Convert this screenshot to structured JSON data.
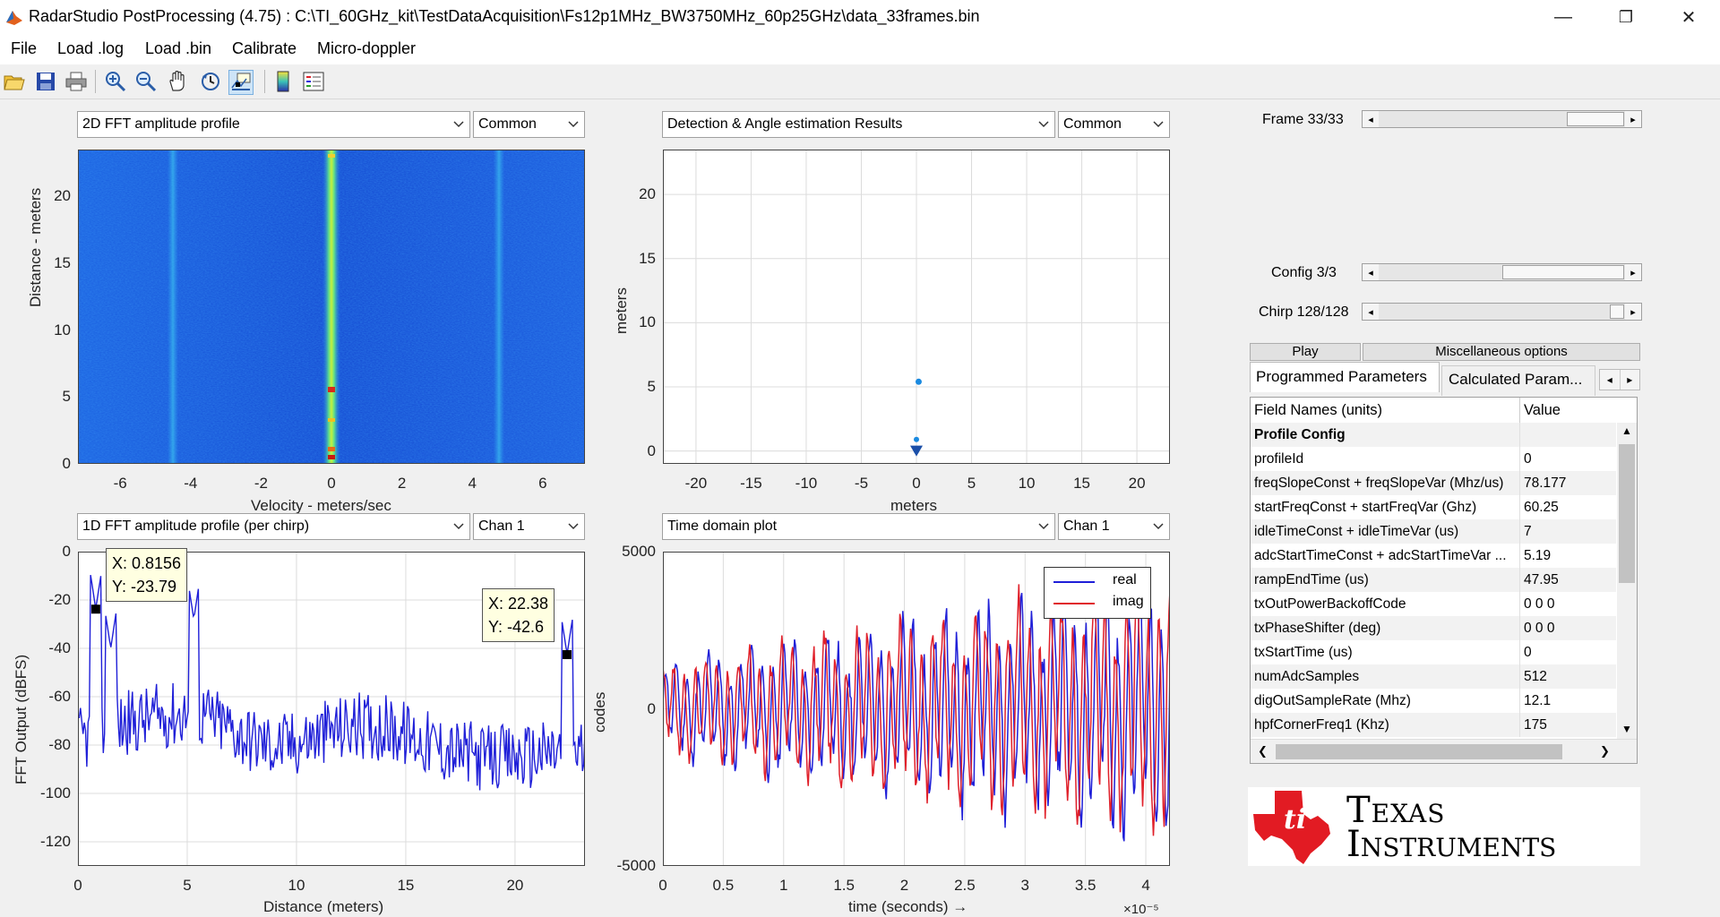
{
  "window": {
    "title": "RadarStudio PostProcessing (4.75)  : C:\\TI_60GHz_kit\\TestDataAcquisition\\Fs12p1MHz_BW3750MHz_60p25GHz\\data_33frames.bin",
    "minimize_glyph": "—",
    "restore_glyph": "❐",
    "close_glyph": "✕"
  },
  "menu": [
    "File",
    "Load .log",
    "Load .bin",
    "Calibrate",
    "Micro-doppler"
  ],
  "toolbar_icons": [
    "open-icon",
    "save-icon",
    "print-icon",
    "zoom-in-icon",
    "zoom-out-icon",
    "pan-icon",
    "rotate-icon",
    "data-cursor-icon",
    "colorbar-icon",
    "legend-icon"
  ],
  "plots": {
    "tl": {
      "dropdown": "2D FFT amplitude profile",
      "channel": "Common",
      "ylabel": "Distance - meters",
      "xlabel": "Velocity - meters/sec",
      "xticks": [
        "-6",
        "-4",
        "-2",
        "0",
        "2",
        "4",
        "6"
      ],
      "yticks": [
        "20",
        "15",
        "10",
        "5",
        "0"
      ]
    },
    "tr": {
      "dropdown": "Detection & Angle estimation Results",
      "channel": "Common",
      "ylabel": "meters",
      "xlabel": "meters",
      "xticks": [
        "-20",
        "-15",
        "-10",
        "-5",
        "0",
        "5",
        "10",
        "15",
        "20"
      ],
      "yticks": [
        "20",
        "15",
        "10",
        "5",
        "0"
      ]
    },
    "bl": {
      "dropdown": "1D FFT amplitude profile (per chirp)",
      "channel": "Chan 1",
      "ylabel": "FFT Output (dBFS)",
      "xlabel": "Distance (meters)",
      "xticks": [
        "0",
        "5",
        "10",
        "15",
        "20"
      ],
      "yticks": [
        "0",
        "-20",
        "-40",
        "-60",
        "-80",
        "-100",
        "-120"
      ],
      "tip1": {
        "x": "X: 0.8156",
        "y": "Y: -23.79"
      },
      "tip2": {
        "x": "X: 22.38",
        "y": "Y: -42.6"
      }
    },
    "br": {
      "dropdown": "Time domain plot",
      "channel": "Chan 1",
      "ylabel": "codes",
      "xlabel": "time  (seconds) →",
      "xticks": [
        "0",
        "0.5",
        "1",
        "1.5",
        "2",
        "2.5",
        "3",
        "3.5",
        "4"
      ],
      "yticks": [
        "5000",
        "0",
        "-5000"
      ],
      "exponent": "×10⁻⁵",
      "legend": [
        {
          "name": "real",
          "color": "#1f1fd8"
        },
        {
          "name": "imag",
          "color": "#e0202a"
        }
      ]
    }
  },
  "chart_data": [
    {
      "type": "heatmap",
      "xlabel": "Velocity - meters/sec",
      "ylabel": "Distance - meters",
      "xlim": [
        -7.2,
        7.2
      ],
      "ylim": [
        0,
        23.5
      ],
      "description_series": [
        {
          "velocity": 0,
          "intensity": "high along full range"
        },
        {
          "velocity": -4.6,
          "intensity": "weak stripe"
        },
        {
          "velocity": 4.8,
          "intensity": "weak stripe"
        }
      ]
    },
    {
      "type": "scatter",
      "xlabel": "meters",
      "ylabel": "meters",
      "xlim": [
        -23,
        23
      ],
      "ylim": [
        -1,
        23.5
      ],
      "points": [
        {
          "x": 0.2,
          "y": 5.4
        },
        {
          "x": 0,
          "y": 0.9
        },
        {
          "x": 0,
          "y": 0.1
        },
        {
          "x": 0,
          "y": 0
        }
      ]
    },
    {
      "type": "line",
      "xlabel": "Distance (meters)",
      "ylabel": "FFT Output (dBFS)",
      "xlim": [
        0,
        23.2
      ],
      "ylim": [
        -130,
        0
      ],
      "peaks": [
        {
          "x": 0.8156,
          "y": -23.79
        },
        {
          "x": 1.5,
          "y": -40
        },
        {
          "x": 5.3,
          "y": -28
        },
        {
          "x": 22.38,
          "y": -42.6
        }
      ],
      "baseline_range": [
        -100,
        -55
      ]
    },
    {
      "type": "line",
      "xlabel": "time  (seconds) →",
      "ylabel": "codes",
      "x_scale": "×10⁻⁵",
      "xlim": [
        0,
        4.2
      ],
      "ylim": [
        -5000,
        5000
      ],
      "series": [
        {
          "name": "real",
          "amplitude_start": 1500,
          "amplitude_end": 4200
        },
        {
          "name": "imag",
          "amplitude_start": 1500,
          "amplitude_end": 4200
        }
      ]
    }
  ],
  "controls": {
    "frame": "Frame 33/33",
    "config": "Config 3/3",
    "chirp": "Chirp 128/128",
    "frame_value": 1.0,
    "config_value": 1.0,
    "chirp_value": 1.0
  },
  "buttons": {
    "play": "Play",
    "misc": "Miscellaneous options"
  },
  "tabs": {
    "programmed": "Programmed Parameters",
    "calculated": "Calculated Param..."
  },
  "table": {
    "header_field": "Field Names   (units)",
    "header_value": "Value",
    "rows": [
      {
        "name": "Profile Config",
        "value": "",
        "bold": true
      },
      {
        "name": "profileId",
        "value": "0"
      },
      {
        "name": "freqSlopeConst + freqSlopeVar (Mhz/us)",
        "value": "78.177"
      },
      {
        "name": "startFreqConst + startFreqVar (Ghz)",
        "value": "60.25"
      },
      {
        "name": "idleTimeConst + idleTimeVar (us)",
        "value": "7"
      },
      {
        "name": "adcStartTimeConst + adcStartTimeVar ...",
        "value": "5.19"
      },
      {
        "name": "rampEndTime (us)",
        "value": "47.95"
      },
      {
        "name": "txOutPowerBackoffCode",
        "value": "0 0 0"
      },
      {
        "name": "txPhaseShifter (deg)",
        "value": "0 0 0"
      },
      {
        "name": "txStartTime (us)",
        "value": "0"
      },
      {
        "name": "numAdcSamples",
        "value": "512"
      },
      {
        "name": "digOutSampleRate (Mhz)",
        "value": "12.1"
      },
      {
        "name": "hpfCornerFreq1 (Khz)",
        "value": "175"
      }
    ]
  },
  "logo": {
    "line1": "Texas",
    "line2": "Instruments",
    "color": "#e21b23"
  }
}
